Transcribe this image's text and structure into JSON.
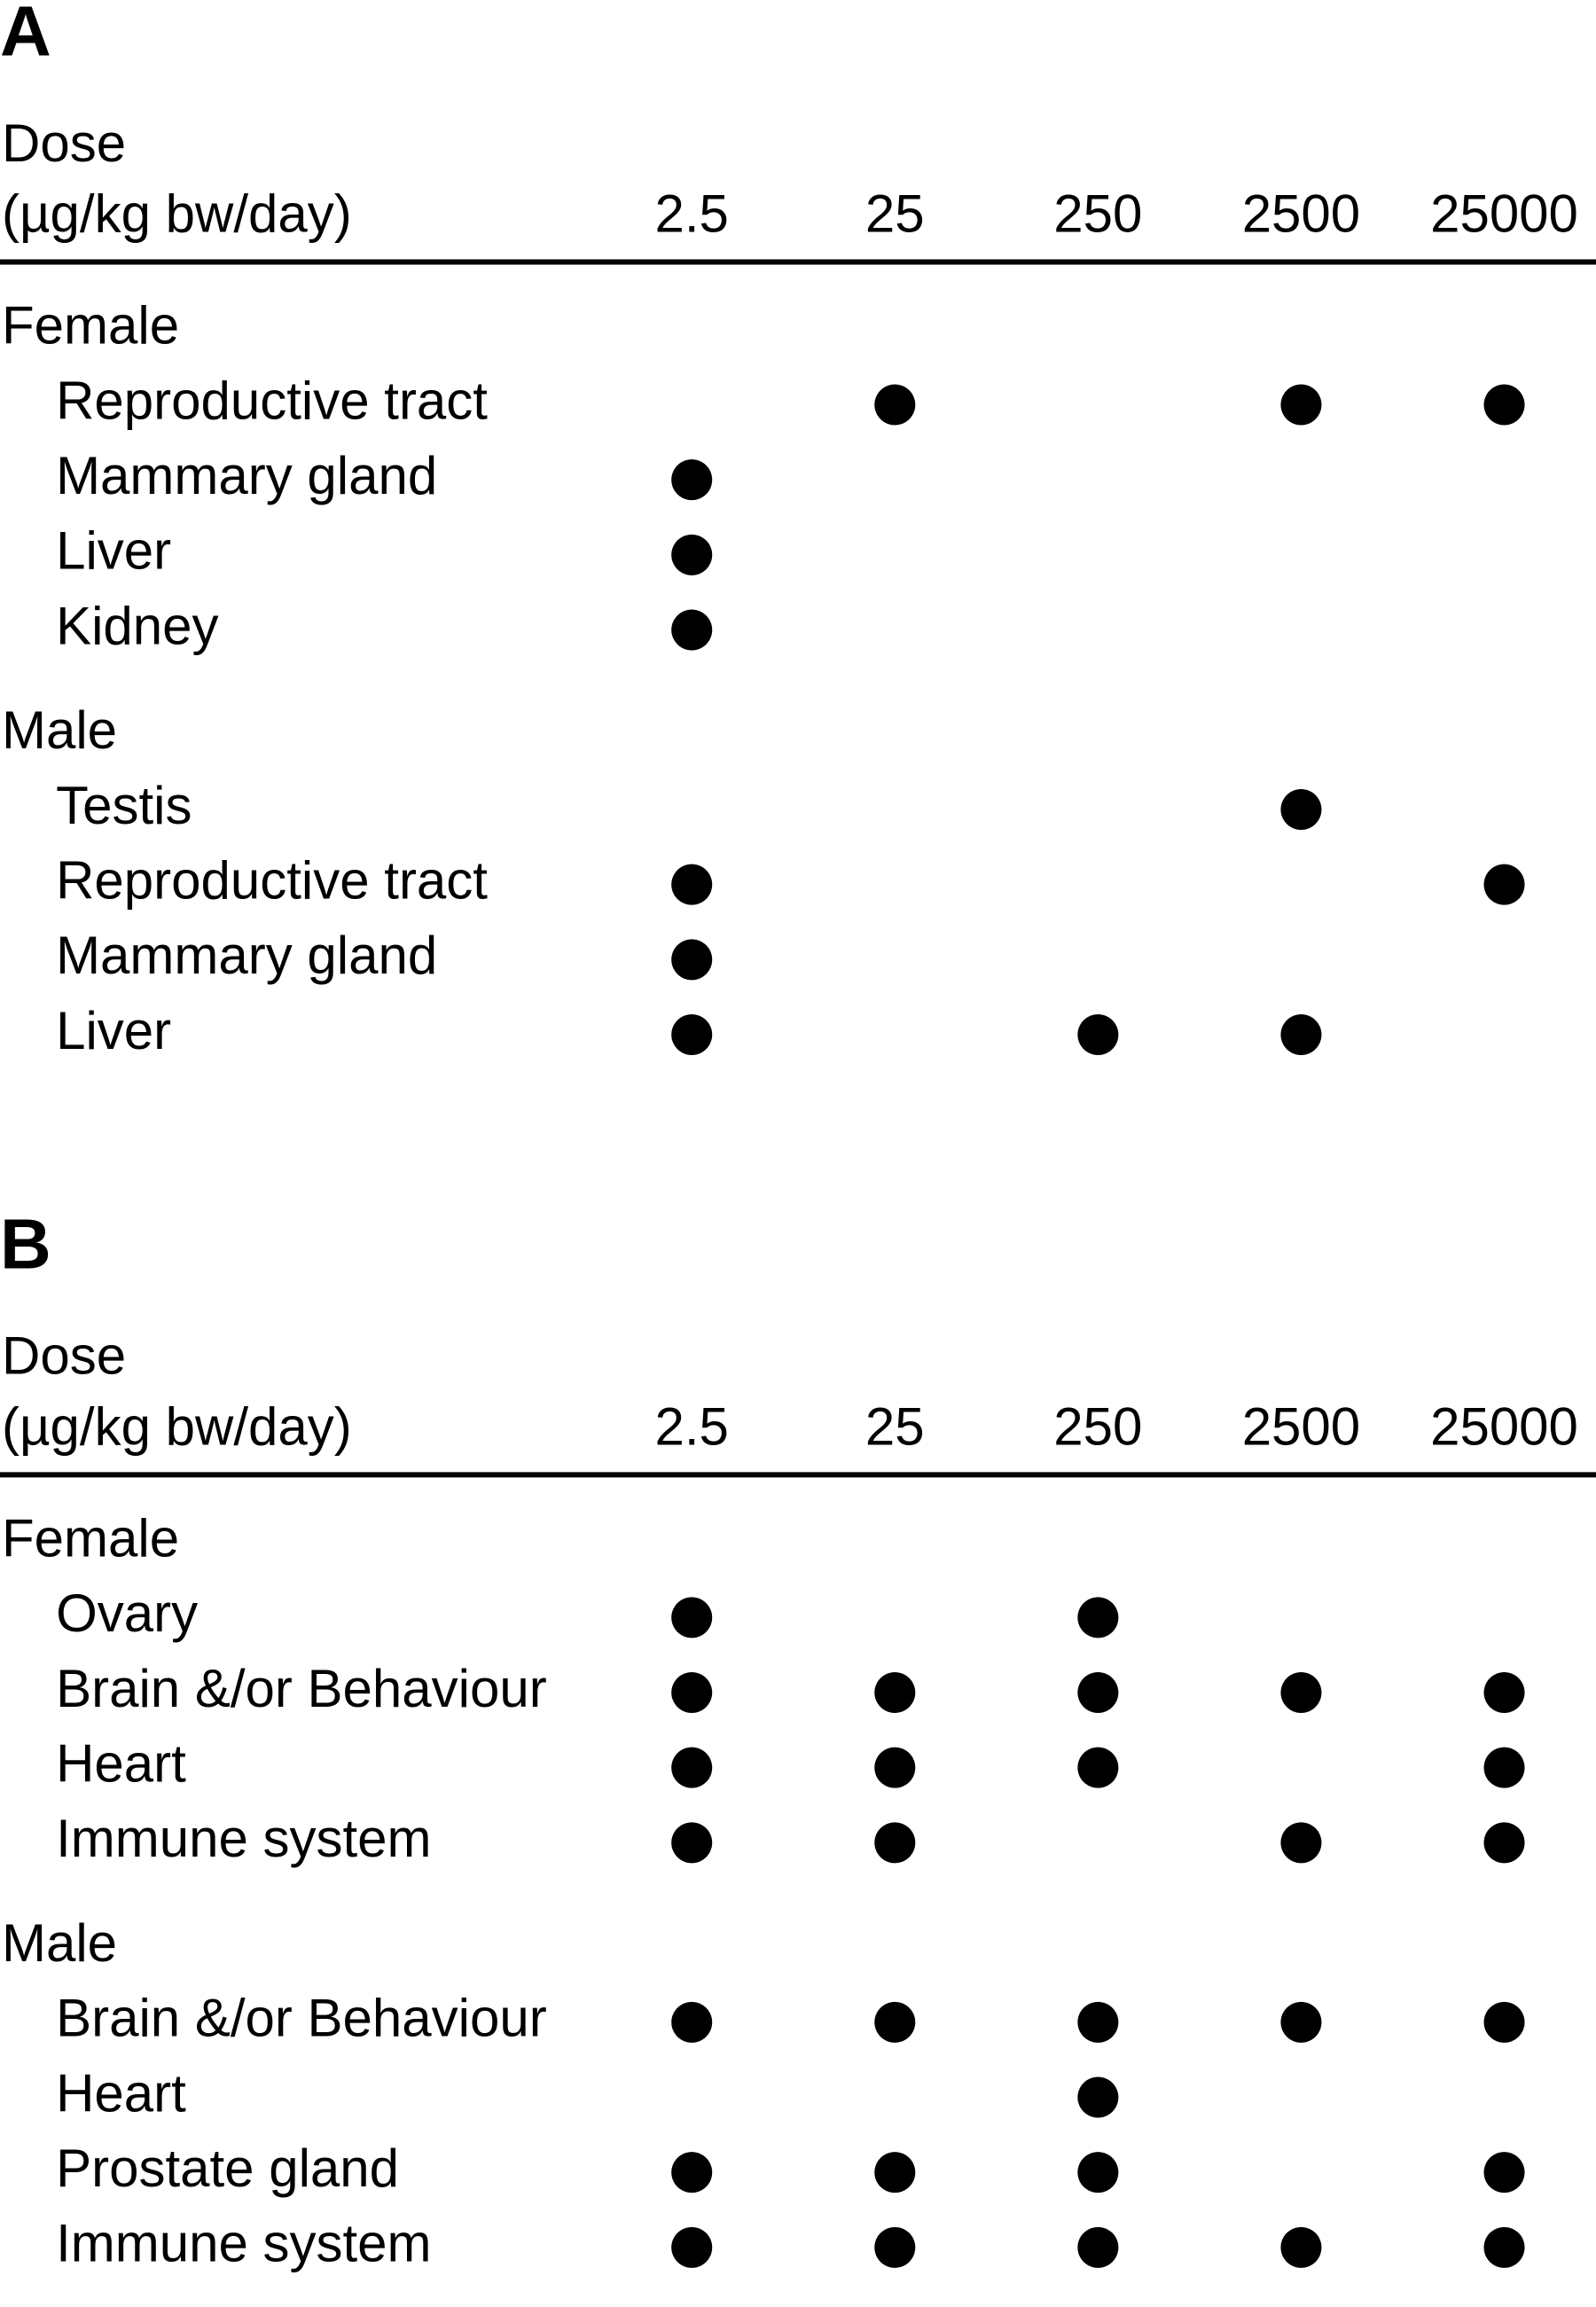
{
  "panels": [
    {
      "label": "A",
      "dose_label": [
        "Dose",
        "(µg/kg bw/day)"
      ],
      "doses": [
        2.5,
        25,
        250,
        2500,
        25000
      ],
      "groups": [
        {
          "name": "Female",
          "rows": [
            {
              "label": "Reproductive tract",
              "effects": [
                false,
                true,
                false,
                true,
                true
              ]
            },
            {
              "label": "Mammary gland",
              "effects": [
                true,
                false,
                false,
                false,
                false
              ]
            },
            {
              "label": "Liver",
              "effects": [
                true,
                false,
                false,
                false,
                false
              ]
            },
            {
              "label": "Kidney",
              "effects": [
                true,
                false,
                false,
                false,
                false
              ]
            }
          ]
        },
        {
          "name": "Male",
          "rows": [
            {
              "label": "Testis",
              "effects": [
                false,
                false,
                false,
                true,
                false
              ]
            },
            {
              "label": "Reproductive tract",
              "effects": [
                true,
                false,
                false,
                false,
                true
              ]
            },
            {
              "label": "Mammary gland",
              "effects": [
                true,
                false,
                false,
                false,
                false
              ]
            },
            {
              "label": "Liver",
              "effects": [
                true,
                false,
                true,
                true,
                false
              ]
            }
          ]
        }
      ]
    },
    {
      "label": "B",
      "dose_label": [
        "Dose",
        "(µg/kg bw/day)"
      ],
      "doses": [
        2.5,
        25,
        250,
        2500,
        25000
      ],
      "groups": [
        {
          "name": "Female",
          "rows": [
            {
              "label": "Ovary",
              "effects": [
                true,
                false,
                true,
                false,
                false
              ]
            },
            {
              "label": "Brain &/or Behaviour",
              "effects": [
                true,
                true,
                true,
                true,
                true
              ]
            },
            {
              "label": "Heart",
              "effects": [
                true,
                true,
                true,
                false,
                true
              ]
            },
            {
              "label": "Immune system",
              "effects": [
                true,
                true,
                false,
                true,
                true
              ]
            }
          ]
        },
        {
          "name": "Male",
          "rows": [
            {
              "label": "Brain &/or Behaviour",
              "effects": [
                true,
                true,
                true,
                true,
                true
              ]
            },
            {
              "label": "Heart",
              "effects": [
                false,
                false,
                true,
                false,
                false
              ]
            },
            {
              "label": "Prostate gland",
              "effects": [
                true,
                true,
                true,
                false,
                true
              ]
            },
            {
              "label": "Immune system",
              "effects": [
                true,
                true,
                true,
                true,
                true
              ]
            }
          ]
        }
      ]
    }
  ]
}
